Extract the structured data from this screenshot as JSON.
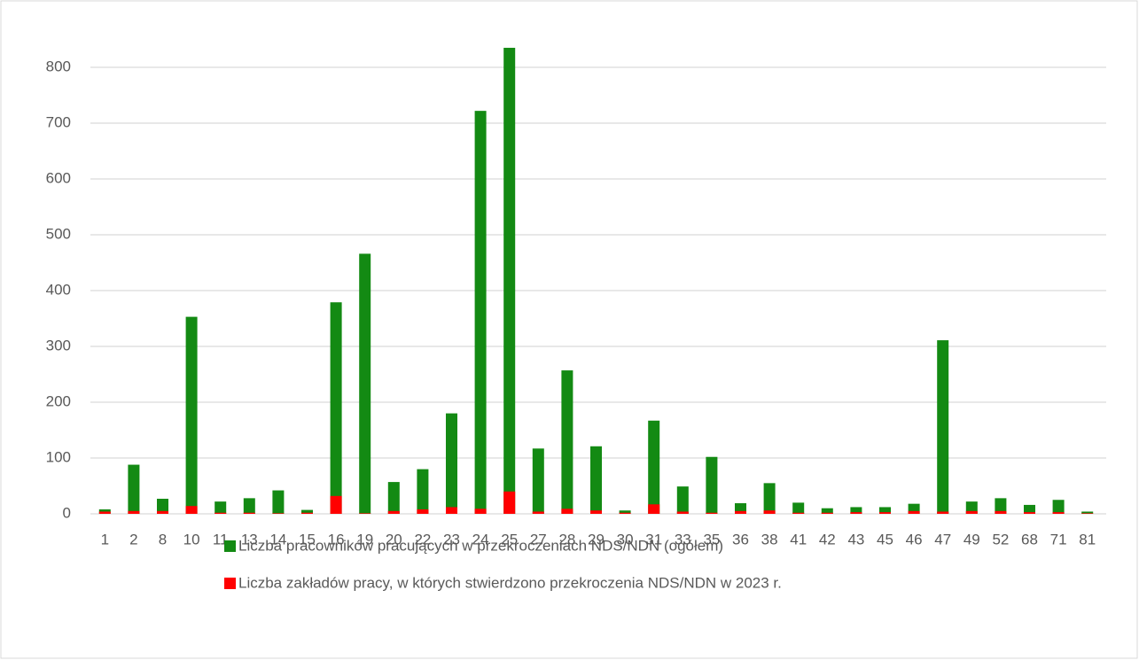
{
  "chart_data": {
    "type": "bar",
    "categories": [
      "1",
      "2",
      "8",
      "10",
      "11",
      "13",
      "14",
      "15",
      "16",
      "19",
      "20",
      "22",
      "23",
      "24",
      "25",
      "27",
      "28",
      "29",
      "30",
      "31",
      "33",
      "35",
      "36",
      "38",
      "41",
      "42",
      "43",
      "45",
      "46",
      "47",
      "49",
      "52",
      "68",
      "71",
      "81"
    ],
    "series": [
      {
        "name": "Liczba pracowników pracujących w przekroczeniach NDS/NDN (ogółem)",
        "color": "#138a13",
        "values": [
          8,
          88,
          27,
          353,
          22,
          28,
          42,
          7,
          379,
          466,
          57,
          80,
          180,
          722,
          835,
          117,
          257,
          121,
          6,
          167,
          49,
          102,
          19,
          55,
          20,
          10,
          12,
          12,
          18,
          311,
          22,
          28,
          16,
          25,
          4
        ]
      },
      {
        "name": "Liczba zakładów pracy, w których stwierdzono przekroczenia NDS/NDN w 2023 r.",
        "color": "#ff0000",
        "values": [
          4,
          5,
          5,
          14,
          2,
          2,
          1,
          2,
          32,
          1,
          5,
          8,
          12,
          9,
          40,
          4,
          9,
          6,
          2,
          17,
          4,
          2,
          5,
          6,
          2,
          2,
          3,
          3,
          5,
          4,
          5,
          5,
          3,
          3,
          1
        ]
      }
    ],
    "ylim": [
      0,
      800
    ],
    "yticks": [
      0,
      100,
      200,
      300,
      400,
      500,
      600,
      700,
      800
    ],
    "grid": true,
    "legend": "bottom"
  }
}
